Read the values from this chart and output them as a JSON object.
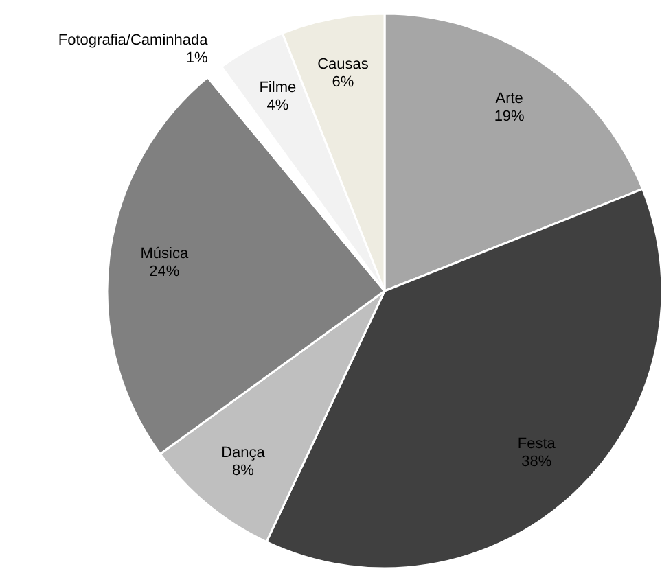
{
  "chart_data": {
    "type": "pie",
    "categories": [
      "Arte",
      "Festa",
      "Dança",
      "Música",
      "Fotografia/Caminhada",
      "Filme",
      "Causas"
    ],
    "values": [
      19,
      38,
      8,
      24,
      1,
      4,
      6
    ],
    "value_labels": [
      "19%",
      "38%",
      "8%",
      "24%",
      "1%",
      "4%",
      "6%"
    ],
    "colors": [
      "#a6a6a6",
      "#404040",
      "#bfbfbf",
      "#808080",
      "#ffffff",
      "#f2f2f2",
      "#eeece1"
    ],
    "legend": false
  }
}
